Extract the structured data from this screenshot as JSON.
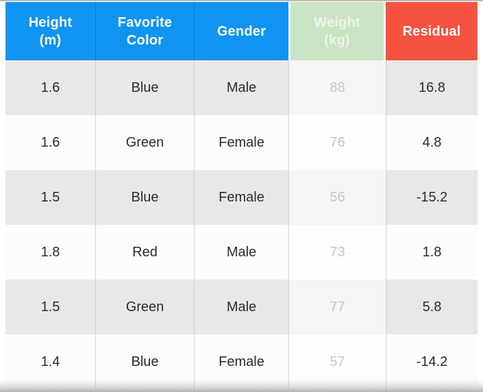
{
  "chart_data": {
    "type": "table",
    "title": "",
    "columns": [
      "Height (m)",
      "Favorite Color",
      "Gender",
      "Weight (kg)",
      "Residual"
    ],
    "rows": [
      [
        "1.6",
        "Blue",
        "Male",
        "88",
        "16.8"
      ],
      [
        "1.6",
        "Green",
        "Female",
        "76",
        "4.8"
      ],
      [
        "1.5",
        "Blue",
        "Female",
        "56",
        "-15.2"
      ],
      [
        "1.8",
        "Red",
        "Male",
        "73",
        "1.8"
      ],
      [
        "1.5",
        "Green",
        "Male",
        "77",
        "5.8"
      ],
      [
        "1.4",
        "Blue",
        "Female",
        "57",
        "-14.2"
      ]
    ]
  },
  "header": {
    "cells": [
      {
        "line1": "Height",
        "line2": "(m)",
        "bg": "#1094f1",
        "fg": "#ffffff"
      },
      {
        "line1": "Favorite",
        "line2": "Color",
        "bg": "#1094f1",
        "fg": "#ffffff"
      },
      {
        "line1": "Gender",
        "line2": "",
        "bg": "#1094f1",
        "fg": "#ffffff"
      },
      {
        "line1": "Weight",
        "line2": "(kg)",
        "bg": "#cbe4c3",
        "fg": "#eef5ea"
      },
      {
        "line1": "Residual",
        "line2": "",
        "bg": "#f6523f",
        "fg": "#ffffff"
      }
    ]
  },
  "colors": {
    "row_gray": "#e9e8e9",
    "row_white": "#fcfcfc",
    "body_text": "#2b2b2b",
    "weight_text": "#c6c6c6",
    "divider": "#a0a0a0",
    "header_blue": "#1094f1",
    "header_green": "#cbe4c3",
    "header_red": "#f6523f"
  }
}
